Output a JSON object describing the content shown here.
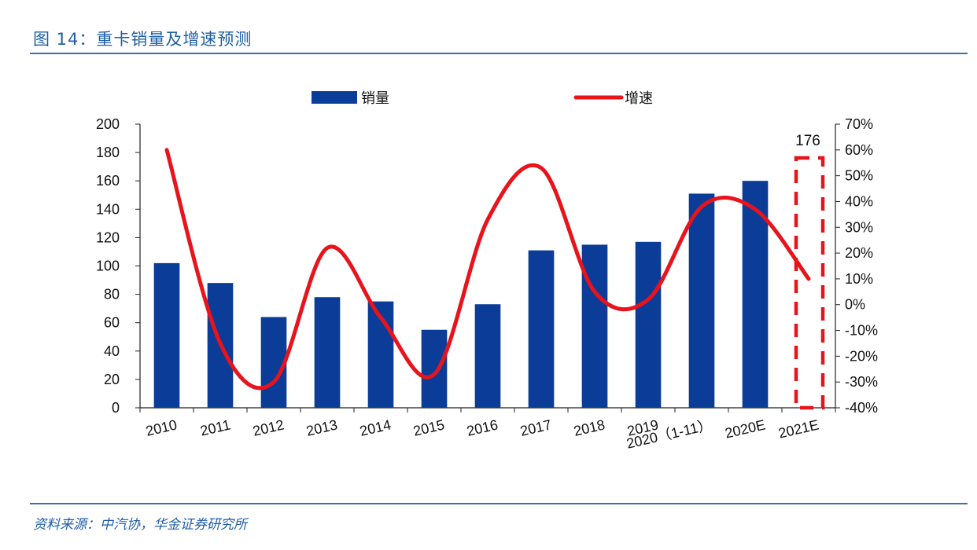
{
  "figure": {
    "title": "图 14：重卡销量及增速预测",
    "source": "资料来源：中汽协，华金证券研究所"
  },
  "chart_data": {
    "type": "bar",
    "categories": [
      "2010",
      "2011",
      "2012",
      "2013",
      "2014",
      "2015",
      "2016",
      "2017",
      "2018",
      "2019",
      "2020（1-11）",
      "2020E",
      "2021E"
    ],
    "series": [
      {
        "name": "销量",
        "type": "bar",
        "axis": "left",
        "color": "#0b3c97",
        "values": [
          102,
          88,
          64,
          78,
          75,
          55,
          73,
          111,
          115,
          117,
          151,
          160,
          null
        ]
      },
      {
        "name": "增速",
        "type": "line",
        "axis": "right",
        "color": "#e8131b",
        "values": [
          60,
          -15,
          -30,
          22,
          -5,
          -27,
          33,
          53,
          5,
          2,
          38,
          37,
          10
        ]
      }
    ],
    "left_axis": {
      "min": 0,
      "max": 200,
      "step": 20,
      "ticks": [
        "0",
        "20",
        "40",
        "60",
        "80",
        "100",
        "120",
        "140",
        "160",
        "180",
        "200"
      ]
    },
    "right_axis": {
      "min": -40,
      "max": 70,
      "step": 10,
      "ticks": [
        "-40%",
        "-30%",
        "-20%",
        "-10%",
        "0%",
        "10%",
        "20%",
        "30%",
        "40%",
        "50%",
        "60%",
        "70%"
      ]
    },
    "annotation": {
      "category": "2021E",
      "label": "176",
      "style": "dashed-box",
      "color": "#e8131b"
    },
    "legend": {
      "placement": "top",
      "items": [
        "销量",
        "增速"
      ]
    },
    "grid": false
  }
}
